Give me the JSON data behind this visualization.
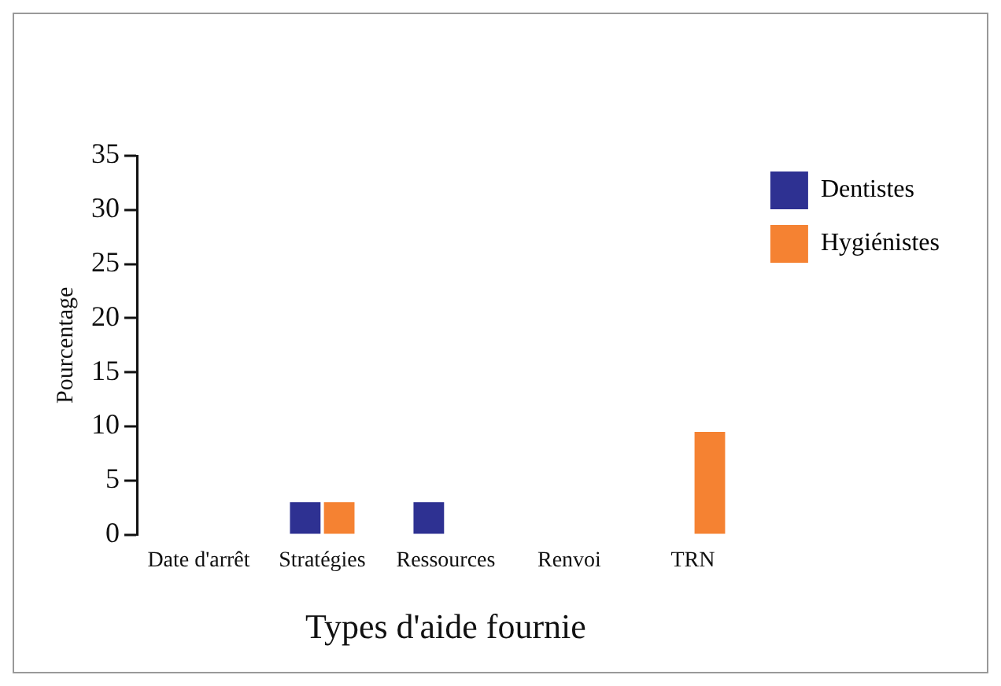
{
  "chart_data": {
    "type": "bar",
    "xlabel": "Types d'aide fournie",
    "ylabel": "Pourcentage",
    "categories": [
      "Date d'arrêt",
      "Stratégies",
      "Ressources",
      "Renvoi",
      "TRN"
    ],
    "series": [
      {
        "name": "Dentistes",
        "color": "#2e3192",
        "values": [
          0,
          3,
          3,
          0,
          0
        ]
      },
      {
        "name": "Hygiénistes",
        "color": "#f58232",
        "values": [
          0,
          3,
          0,
          0,
          9.5
        ]
      }
    ],
    "ylim": [
      0,
      35
    ],
    "yticks": [
      0,
      5,
      10,
      15,
      20,
      25,
      30,
      35
    ],
    "grid": false,
    "legend": "top right"
  }
}
